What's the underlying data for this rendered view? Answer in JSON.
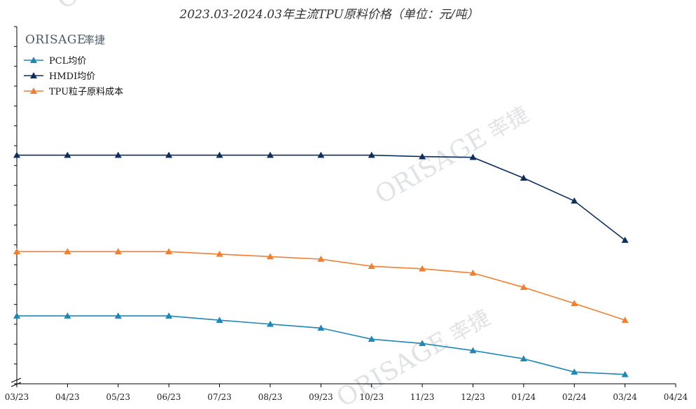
{
  "chart_data": {
    "type": "line",
    "title": "2023.03-2024.03年主流TPU原料价格（单位：元/吨）",
    "categories": [
      "03/23",
      "04/23",
      "05/23",
      "06/23",
      "07/23",
      "08/23",
      "09/23",
      "10/23",
      "11/23",
      "12/23",
      "01/24",
      "02/24",
      "03/24",
      "04/24"
    ],
    "ylim": [
      0,
      100
    ],
    "y_ticks_labeled": false,
    "grid": false,
    "legend_position": "top-left",
    "series": [
      {
        "name": "PCL均价",
        "color": "#1f86b8",
        "x": [
          0,
          1,
          2,
          3,
          4,
          5,
          6,
          7,
          8,
          9,
          10,
          11,
          12
        ],
        "values": [
          19,
          19,
          19,
          19,
          17.8,
          16.7,
          15.6,
          12.5,
          11.3,
          9.3,
          7.0,
          3.3,
          2.6
        ]
      },
      {
        "name": "HMDI均价",
        "color": "#0d2f5e",
        "x": [
          0,
          1,
          2,
          3,
          4,
          5,
          6,
          7,
          8,
          9,
          10,
          11,
          12
        ],
        "values": [
          64,
          64,
          64,
          64,
          64,
          64,
          64,
          64,
          63.6,
          63.4,
          57.6,
          51.2,
          40.2
        ]
      },
      {
        "name": "TPU粒子原料成本",
        "color": "#f07f30",
        "x": [
          0,
          1,
          2,
          3,
          4,
          5,
          6,
          7,
          8,
          9,
          10,
          11,
          12
        ],
        "values": [
          37,
          37,
          37,
          37,
          36.3,
          35.6,
          34.9,
          32.9,
          32.2,
          31.0,
          27.0,
          22.5,
          17.8
        ]
      }
    ]
  },
  "logo": {
    "latin": "ORISAGE",
    "cn": "率捷"
  },
  "watermarks": [
    {
      "latin": "ORISAGE",
      "cn": "率捷"
    },
    {
      "latin": "ORISAGE",
      "cn": "率捷"
    },
    {
      "latin": "ORISAGE",
      "cn": "率捷"
    }
  ]
}
